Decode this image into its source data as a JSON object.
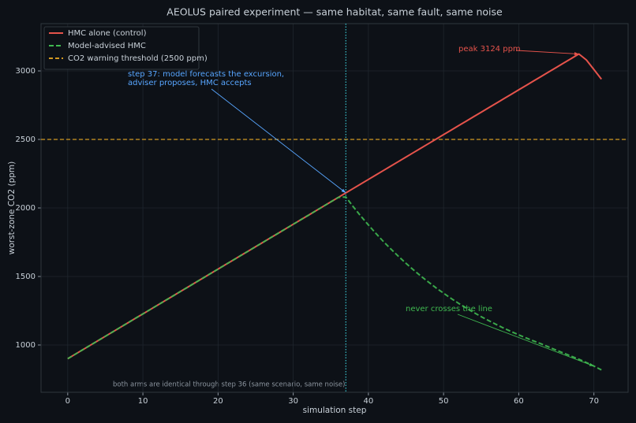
{
  "chart_data": {
    "type": "line",
    "title": "AEOLUS paired experiment — same habitat, same fault, same noise",
    "x_label": "simulation step",
    "y_label": "worst-zone CO2 (ppm)",
    "x": [
      0,
      1,
      2,
      3,
      4,
      5,
      6,
      7,
      8,
      9,
      10,
      11,
      12,
      13,
      14,
      15,
      16,
      17,
      18,
      19,
      20,
      21,
      22,
      23,
      24,
      25,
      26,
      27,
      28,
      29,
      30,
      31,
      32,
      33,
      34,
      35,
      36,
      37,
      38,
      39,
      40,
      41,
      42,
      43,
      44,
      45,
      46,
      47,
      48,
      49,
      50,
      51,
      52,
      53,
      54,
      55,
      56,
      57,
      58,
      59,
      60,
      61,
      62,
      63,
      64,
      65,
      66,
      67,
      68,
      69,
      70,
      71
    ],
    "series": [
      {
        "name": "HMC alone (control)",
        "color": "#e5534b",
        "dash": false,
        "values": [
          900,
          932.7,
          965.4,
          998.1,
          1030.8,
          1063.5,
          1096.2,
          1128.9,
          1161.6,
          1194.3,
          1227,
          1259.7,
          1292.4,
          1325.1,
          1357.8,
          1390.5,
          1423.2,
          1455.9,
          1488.6,
          1521.3,
          1554,
          1586.7,
          1619.4,
          1652.1,
          1684.8,
          1717.5,
          1750.2,
          1782.9,
          1815.6,
          1848.3,
          1881,
          1913.7,
          1946.4,
          1979.1,
          2011.8,
          2044.5,
          2077.2,
          2109.9,
          2142.6,
          2175.3,
          2208,
          2240.7,
          2273.4,
          2306.1,
          2338.8,
          2371.5,
          2404.2,
          2436.9,
          2469.6,
          2502.3,
          2535,
          2567.7,
          2600.4,
          2633.1,
          2665.8,
          2698.5,
          2731.2,
          2763.9,
          2796.6,
          2829.3,
          2862,
          2894.7,
          2927.4,
          2960.1,
          2992.8,
          3025.5,
          3058.2,
          3090.9,
          3123.6,
          3080,
          3010,
          2940
        ]
      },
      {
        "name": "Model-advised HMC",
        "color": "#3fb950",
        "dash": true,
        "values": [
          900,
          932.7,
          965.4,
          998.1,
          1030.8,
          1063.5,
          1096.2,
          1128.9,
          1161.6,
          1194.3,
          1227,
          1259.7,
          1292.4,
          1325.1,
          1357.8,
          1390.5,
          1423.2,
          1455.9,
          1488.6,
          1521.3,
          1554,
          1586.7,
          1619.4,
          1652.1,
          1684.8,
          1717.5,
          1750.2,
          1782.9,
          1815.6,
          1848.3,
          1881,
          1913.7,
          1946.4,
          1979.1,
          2011.8,
          2044.5,
          2077.2,
          2080,
          2008,
          1940,
          1876,
          1814,
          1755,
          1700,
          1647,
          1596,
          1548,
          1502,
          1459,
          1417,
          1378,
          1340,
          1304,
          1270,
          1238,
          1207,
          1178,
          1150,
          1123,
          1098,
          1074,
          1051,
          1029,
          1008,
          985,
          962,
          940,
          918,
          896,
          872,
          846,
          818
        ]
      }
    ],
    "threshold": {
      "name": "CO2 warning threshold (2500 ppm)",
      "value": 2500,
      "color": "#d29922"
    },
    "vline": {
      "x": 37,
      "color": "#39c5cf"
    },
    "annotations": [
      {
        "lines": [
          "step 37: model forecasts the excursion,",
          "adviser proposes, HMC accepts"
        ],
        "color": "#58a6ff",
        "target": "chart_data.series.0.values.37"
      },
      {
        "lines": [
          "peak 3124 ppm"
        ],
        "color": "#e5534b",
        "target": "chart_data.series.0.values.68"
      },
      {
        "lines": [
          "never crosses the line"
        ],
        "color": "#3fb950",
        "target": "chart_data.series.1.values.70"
      }
    ],
    "footnote": "both arms are identical through step 36 (same scenario, same noise)",
    "xlim": [
      -3.55,
      74.55
    ],
    "ylim": [
      655,
      3345
    ],
    "xticks": [
      0,
      10,
      20,
      30,
      40,
      50,
      60,
      70
    ],
    "yticks": [
      1000,
      1500,
      2000,
      2500,
      3000
    ],
    "grid": true,
    "legend": "upper left"
  }
}
